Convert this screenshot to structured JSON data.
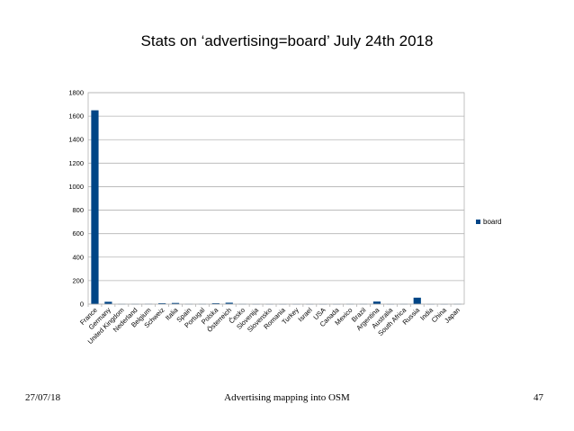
{
  "slide": {
    "title": "Stats on ‘advertising=board’ July 24th 2018",
    "footer_date": "27/07/18",
    "footer_center": "Advertising mapping into OSM",
    "footer_page": "47"
  },
  "colors": {
    "bar": "#004586",
    "grid": "#b3b3b3",
    "axis": "#b3b3b3"
  },
  "chart_data": {
    "type": "bar",
    "title": "Stats on ‘advertising=board’ July 24th 2018",
    "xlabel": "",
    "ylabel": "",
    "ylim": [
      0,
      1800
    ],
    "yticks": [
      0,
      200,
      400,
      600,
      800,
      1000,
      1200,
      1400,
      1600,
      1800
    ],
    "grid": true,
    "legend": "right",
    "categories": [
      "France",
      "Germany",
      "United Kingdom",
      "Nederland",
      "Belgium",
      "Schweiz",
      "Italia",
      "Spain",
      "Portugal",
      "Polska",
      "Österreich",
      "Česko",
      "Slovenija",
      "Slovensko",
      "Romania",
      "Turkey",
      "Israel",
      "USA",
      "Canada",
      "Mexico",
      "Brazil",
      "Argentina",
      "Australia",
      "South Africa",
      "Russia",
      "India",
      "China",
      "Japan"
    ],
    "series": [
      {
        "name": "board",
        "values": [
          1650,
          20,
          2,
          2,
          3,
          8,
          10,
          2,
          2,
          8,
          12,
          2,
          1,
          1,
          1,
          1,
          1,
          1,
          1,
          2,
          2,
          22,
          1,
          2,
          55,
          1,
          1,
          2
        ]
      }
    ]
  }
}
